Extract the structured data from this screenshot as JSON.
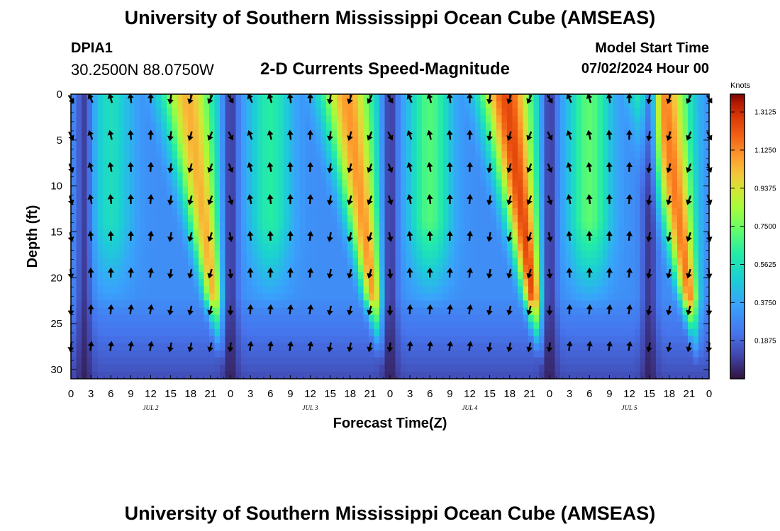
{
  "title": "University of Southern Mississippi Ocean Cube (AMSEAS)",
  "footer_title": "University of Southern Mississippi Ocean Cube (AMSEAS)",
  "station": {
    "name": "DPIA1",
    "coords": "30.2500N  88.0750W"
  },
  "chart_heading": "2-D Currents Speed-Magnitude",
  "model_start": {
    "label": "Model Start Time",
    "value": "07/02/2024 Hour 00"
  },
  "chart_data": {
    "type": "heatmap",
    "title": "2-D Currents Speed-Magnitude",
    "xlabel": "Forecast Time(Z)",
    "ylabel": "Depth (ft)",
    "x_range_hours": [
      0,
      96
    ],
    "ylim": [
      0,
      31
    ],
    "x_ticks": [
      "0",
      "3",
      "6",
      "9",
      "12",
      "15",
      "18",
      "21",
      "0",
      "3",
      "6",
      "9",
      "12",
      "15",
      "18",
      "21",
      "0",
      "3",
      "6",
      "9",
      "12",
      "15",
      "18",
      "21",
      "0",
      "3",
      "6",
      "9",
      "12",
      "15",
      "18",
      "21",
      "0"
    ],
    "y_ticks": [
      0,
      5,
      10,
      15,
      20,
      25,
      30
    ],
    "day_labels": [
      {
        "text": "JUL 2",
        "hour": 12
      },
      {
        "text": "JUL 3",
        "hour": 36
      },
      {
        "text": "JUL 4",
        "hour": 60
      },
      {
        "text": "JUL 5",
        "hour": 84
      }
    ],
    "colorbar": {
      "unit": "Knots",
      "min": 0,
      "max": 1.4,
      "ticks": [
        "1.3125",
        "1.1250",
        "0.9375",
        "0.7500",
        "0.5625",
        "0.3750",
        "0.1875"
      ]
    },
    "peaks": [
      {
        "center_hour": 17.5,
        "speed_knots": 1.05
      },
      {
        "center_hour": 41.5,
        "speed_knots": 1.1
      },
      {
        "center_hour": 65.5,
        "speed_knots": 1.25
      },
      {
        "center_hour": 89.0,
        "speed_knots": 1.15
      }
    ],
    "secondary_peaks": [
      {
        "center_hour": 6,
        "speed_knots": 0.55
      },
      {
        "center_hour": 30,
        "speed_knots": 0.62
      },
      {
        "center_hour": 54,
        "speed_knots": 0.7
      },
      {
        "center_hour": 78,
        "speed_knots": 0.72
      }
    ],
    "minima_hours": [
      2,
      24,
      48,
      72,
      87
    ]
  }
}
